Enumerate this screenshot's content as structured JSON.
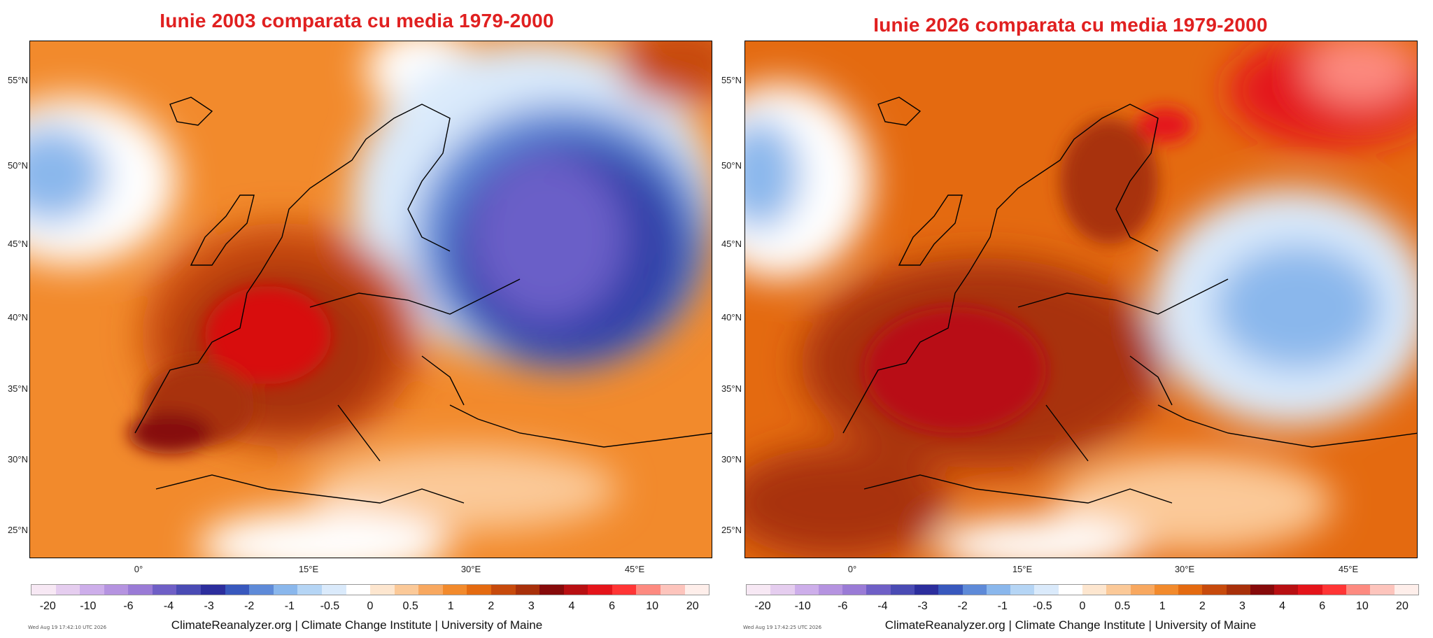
{
  "panels": [
    {
      "title": "Iunie 2003 comparata cu media 1979-2000",
      "timestamp": "Wed Aug 19 17:42:10 UTC 2026",
      "credit": "ClimateReanalyzer.org | Climate Change Institute | University of Maine"
    },
    {
      "title": "Iunie 2026 comparata cu media 1979-2000",
      "timestamp": "Wed Aug 19 17:42:25 UTC 2026",
      "credit": "ClimateReanalyzer.org | Climate Change Institute | University of Maine"
    }
  ],
  "latitude_labels": [
    "55°N",
    "50°N",
    "45°N",
    "40°N",
    "35°N",
    "30°N",
    "25°N"
  ],
  "longitude_labels": [
    "0°",
    "15°E",
    "30°E",
    "45°E"
  ],
  "colorbar": {
    "labels": [
      "-20",
      "-10",
      "-6",
      "-4",
      "-3",
      "-2",
      "-1",
      "-0.5",
      "0",
      "0.5",
      "1",
      "2",
      "3",
      "4",
      "6",
      "10",
      "20"
    ],
    "colors": [
      "#f7e8f4",
      "#e5cdef",
      "#cdaeea",
      "#b593e0",
      "#9a7bd6",
      "#6f5fc6",
      "#4a4bb4",
      "#2c2e9d",
      "#3858bd",
      "#5e8ad8",
      "#8ab7ec",
      "#b5d5f5",
      "#daeafb",
      "#ffffff",
      "#fde6cf",
      "#fbc998",
      "#f8a860",
      "#f28a2c",
      "#e46a10",
      "#c74a0c",
      "#a8300a",
      "#860a0a",
      "#b80f12",
      "#e4141a",
      "#ff3535",
      "#fd8a80",
      "#fdc4bc",
      "#feeeea"
    ]
  }
}
